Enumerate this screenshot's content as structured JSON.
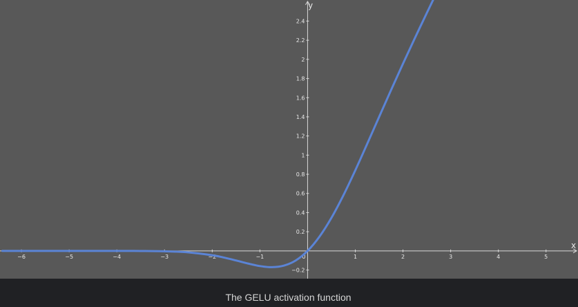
{
  "caption": "The GELU activation function",
  "colors": {
    "background": "#585858",
    "axis": "#d9d9d9",
    "curve": "#5b84d6",
    "caption_bar": "#202124",
    "text": "#e8e8e8"
  },
  "chart_data": {
    "type": "line",
    "title": "",
    "xlabel": "x",
    "ylabel": "y",
    "xlim": [
      -6.45,
      5.67
    ],
    "ylim": [
      -0.29,
      2.62
    ],
    "grid": false,
    "origin_label": "0",
    "x_ticks": [
      {
        "value": -6,
        "label": "−6"
      },
      {
        "value": -5,
        "label": "−5"
      },
      {
        "value": -4,
        "label": "−4"
      },
      {
        "value": -3,
        "label": "−3"
      },
      {
        "value": -2,
        "label": "−2"
      },
      {
        "value": -1,
        "label": "−1"
      },
      {
        "value": 1,
        "label": "1"
      },
      {
        "value": 2,
        "label": "2"
      },
      {
        "value": 3,
        "label": "3"
      },
      {
        "value": 4,
        "label": "4"
      },
      {
        "value": 5,
        "label": "5"
      }
    ],
    "y_ticks": [
      {
        "value": -0.2,
        "label": "−0.2"
      },
      {
        "value": 0.2,
        "label": "0.2"
      },
      {
        "value": 0.4,
        "label": "0.4"
      },
      {
        "value": 0.6,
        "label": "0.6"
      },
      {
        "value": 0.8,
        "label": "0.8"
      },
      {
        "value": 1,
        "label": "1"
      },
      {
        "value": 1.2,
        "label": "1.2"
      },
      {
        "value": 1.4,
        "label": "1.4"
      },
      {
        "value": 1.6,
        "label": "1.6"
      },
      {
        "value": 1.8,
        "label": "1.8"
      },
      {
        "value": 2,
        "label": "2"
      },
      {
        "value": 2.2,
        "label": "2.2"
      },
      {
        "value": 2.4,
        "label": "2.4"
      }
    ],
    "series": [
      {
        "x": [
          -6.4,
          -5,
          -4,
          -3.5,
          -3,
          -2.5,
          -2,
          -1.75,
          -1.5,
          -1.25,
          -1,
          -0.75,
          -0.5,
          -0.25,
          0,
          0.25,
          0.5,
          0.75,
          1,
          1.25,
          1.5,
          1.75,
          2,
          2.25,
          2.5,
          2.65
        ],
        "y": [
          0,
          0,
          -0.0001,
          -0.0008,
          -0.004,
          -0.0155,
          -0.0455,
          -0.0702,
          -0.1002,
          -0.132,
          -0.1587,
          -0.17,
          -0.1543,
          -0.1003,
          0,
          0.1497,
          0.3457,
          0.58,
          0.8413,
          1.118,
          1.3998,
          1.6798,
          1.9545,
          2.2225,
          2.4845,
          2.6393
        ]
      }
    ]
  }
}
